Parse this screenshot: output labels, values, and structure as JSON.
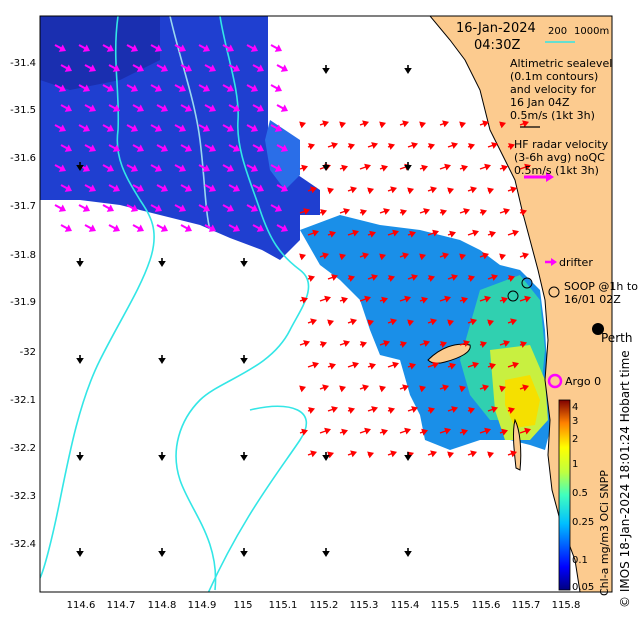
{
  "header": {
    "date": "16-Jan-2024",
    "time": "04:30Z",
    "depth_200": "200",
    "depth_1000": "1000m"
  },
  "legend": {
    "altimetry_lines": [
      "Altimetric sealevel",
      "(0.1m contours)",
      "and velocity for",
      "16 Jan 04Z",
      "0.5m/s (1kt 3h)"
    ],
    "hf_radar_lines": [
      "HF radar velocity",
      "(3-6h avg) noQC",
      "0.5m/s (1kt 3h)"
    ],
    "drifter": "drifter",
    "soop_lines": [
      "SOOP @1h to",
      "16/01 02Z"
    ],
    "perth": "Perth",
    "argo": "Argo 0"
  },
  "axes": {
    "y_ticks": [
      "-31.4",
      "-31.5",
      "-31.6",
      "-31.7",
      "-31.8",
      "-31.9",
      "-32",
      "-32.1",
      "-32.2",
      "-32.3",
      "-32.4"
    ],
    "x_ticks": [
      "114.6",
      "114.7",
      "114.8",
      "114.9",
      "115",
      "115.1",
      "115.2",
      "115.3",
      "115.4",
      "115.5",
      "115.6",
      "115.7",
      "115.8"
    ]
  },
  "colorbar": {
    "label": "Chl-a mg/m3 OCi SNPP",
    "ticks": [
      "4",
      "3",
      "2",
      "1",
      "0.5",
      "0.25",
      "0.1",
      "0.05"
    ]
  },
  "credit": "© IMOS 18-Jan-2024 18:01:24 Hobart time",
  "colors": {
    "land": "#fccb8f",
    "coast_outline": "#000000",
    "bathymetry": "#33e6e6",
    "hf_radar_arrow": "#ff00ff",
    "altimetry_arrow": "#ff0000",
    "argo": "#ff00ff"
  }
}
